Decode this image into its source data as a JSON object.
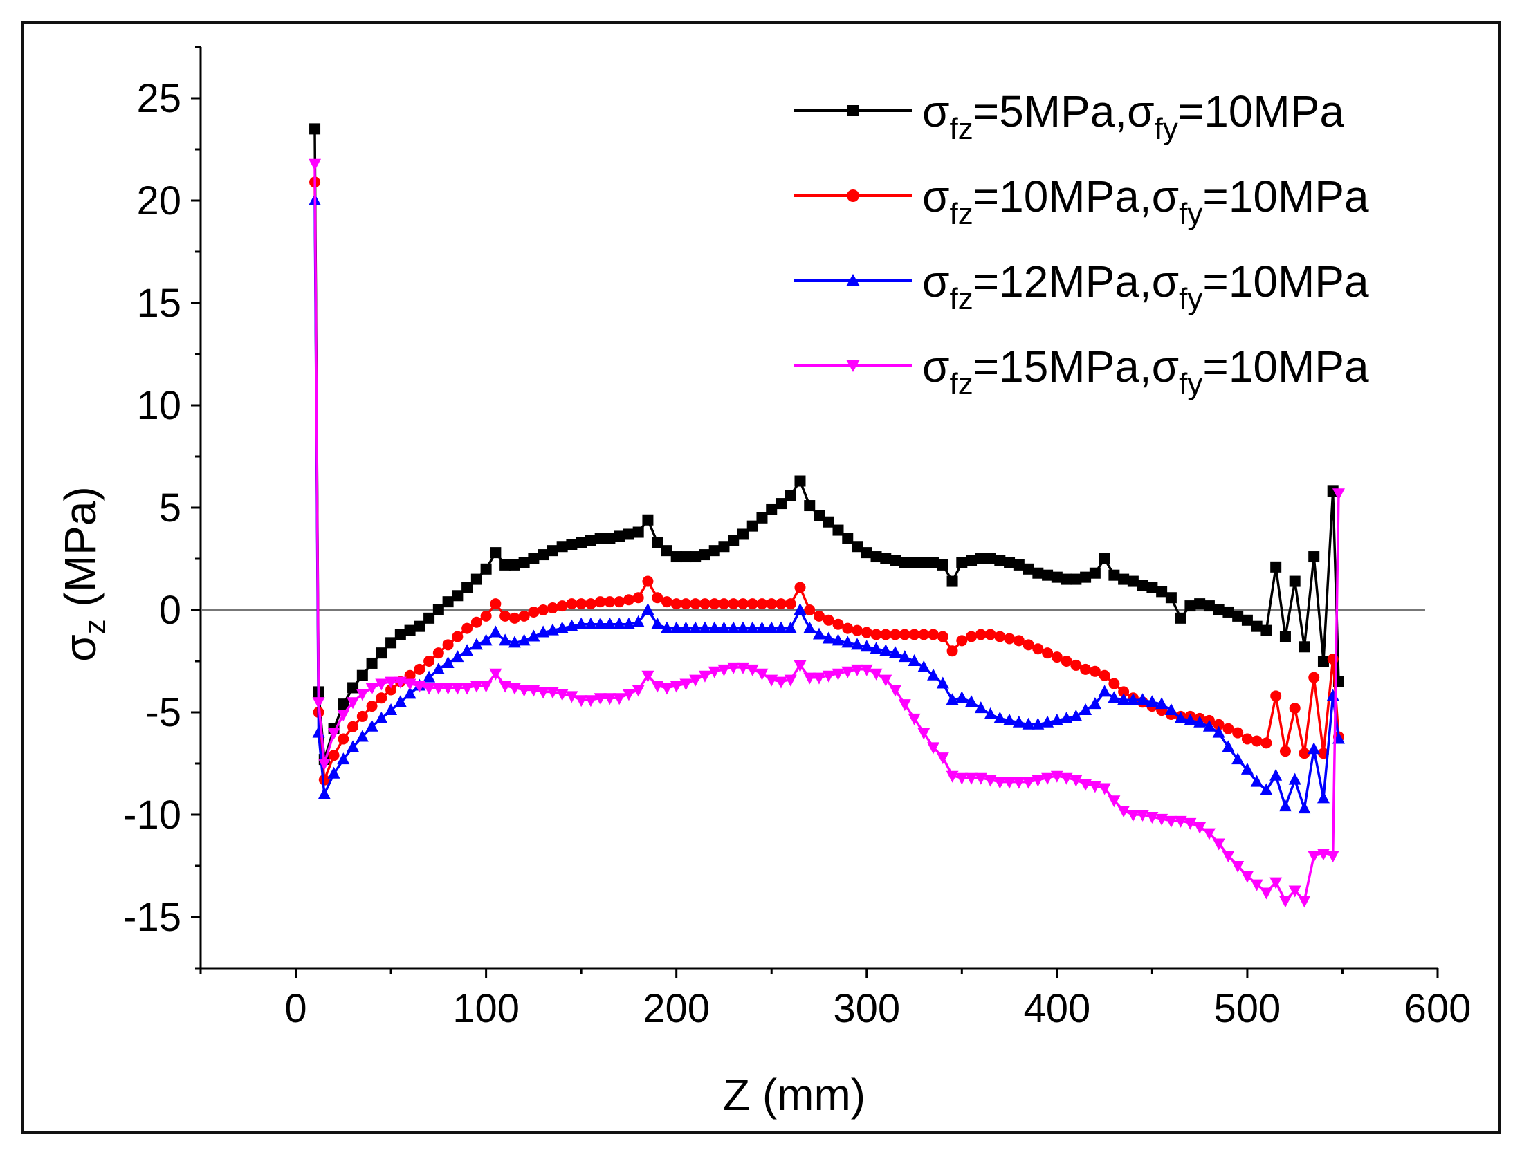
{
  "chart_data": {
    "type": "line",
    "title": "",
    "xlabel": "Z (mm)",
    "ylabel_main": "σ",
    "ylabel_sub": "z",
    "ylabel_unit": " (MPa)",
    "xlim": [
      -50,
      600
    ],
    "ylim": [
      -17.5,
      27.5
    ],
    "xticks": [
      0,
      100,
      200,
      300,
      400,
      500,
      600
    ],
    "yticks": [
      25,
      20,
      15,
      10,
      5,
      0,
      -5,
      -10,
      -15
    ],
    "xtick_labels": [
      "0",
      "100",
      "200",
      "300",
      "400",
      "500",
      "600"
    ],
    "ytick_labels": [
      "25",
      "20",
      "15",
      "10",
      "5",
      "0",
      "-5",
      "-10",
      "-15"
    ],
    "reference_line_y": 0,
    "legend_position": "top-right",
    "series": [
      {
        "name": "σfz=5MPa,σfy=10MPa",
        "legend": {
          "s1": "σ",
          "sub1": "fz",
          "mid": "=5MPa,",
          "s2": "σ",
          "sub2": "fy",
          "end": "=10MPa"
        },
        "color": "#000000",
        "marker": "square",
        "x": [
          10,
          12,
          15,
          20,
          25,
          30,
          35,
          40,
          45,
          50,
          55,
          60,
          65,
          70,
          75,
          80,
          85,
          90,
          95,
          100,
          105,
          110,
          115,
          120,
          125,
          130,
          135,
          140,
          145,
          150,
          155,
          160,
          165,
          170,
          175,
          180,
          185,
          190,
          195,
          200,
          205,
          210,
          215,
          220,
          225,
          230,
          235,
          240,
          245,
          250,
          255,
          260,
          265,
          270,
          275,
          280,
          285,
          290,
          295,
          300,
          305,
          310,
          315,
          320,
          325,
          330,
          335,
          340,
          345,
          350,
          355,
          360,
          365,
          370,
          375,
          380,
          385,
          390,
          395,
          400,
          405,
          410,
          415,
          420,
          425,
          430,
          435,
          440,
          445,
          450,
          455,
          460,
          465,
          470,
          475,
          480,
          485,
          490,
          495,
          500,
          505,
          510,
          515,
          520,
          525,
          530,
          535,
          540,
          545,
          548
        ],
        "values": [
          23.5,
          -4.0,
          -7.3,
          -5.8,
          -4.6,
          -3.8,
          -3.2,
          -2.6,
          -2.1,
          -1.6,
          -1.2,
          -1.0,
          -0.8,
          -0.4,
          0.0,
          0.4,
          0.7,
          1.1,
          1.5,
          2.0,
          2.8,
          2.2,
          2.2,
          2.3,
          2.5,
          2.7,
          2.9,
          3.1,
          3.2,
          3.3,
          3.4,
          3.5,
          3.5,
          3.6,
          3.7,
          3.8,
          4.4,
          3.3,
          2.9,
          2.6,
          2.6,
          2.6,
          2.7,
          2.9,
          3.1,
          3.4,
          3.7,
          4.1,
          4.5,
          4.9,
          5.2,
          5.6,
          6.3,
          5.1,
          4.6,
          4.3,
          3.9,
          3.5,
          3.1,
          2.8,
          2.6,
          2.5,
          2.4,
          2.3,
          2.3,
          2.3,
          2.3,
          2.2,
          1.4,
          2.3,
          2.4,
          2.5,
          2.5,
          2.4,
          2.3,
          2.2,
          2.0,
          1.8,
          1.7,
          1.6,
          1.5,
          1.5,
          1.6,
          1.8,
          2.5,
          1.7,
          1.5,
          1.4,
          1.2,
          1.1,
          0.9,
          0.6,
          -0.4,
          0.2,
          0.3,
          0.2,
          0.0,
          -0.1,
          -0.3,
          -0.5,
          -0.8,
          -1.0,
          2.1,
          -1.3,
          1.4,
          -1.8,
          2.6,
          -2.5,
          5.8,
          -3.5
        ]
      },
      {
        "name": "σfz=10MPa,σfy=10MPa",
        "legend": {
          "s1": "σ",
          "sub1": "fz",
          "mid": "=10MPa,",
          "s2": "σ",
          "sub2": "fy",
          "end": "=10MPa"
        },
        "color": "#ff0000",
        "marker": "circle",
        "x": [
          10,
          12,
          15,
          20,
          25,
          30,
          35,
          40,
          45,
          50,
          55,
          60,
          65,
          70,
          75,
          80,
          85,
          90,
          95,
          100,
          105,
          110,
          115,
          120,
          125,
          130,
          135,
          140,
          145,
          150,
          155,
          160,
          165,
          170,
          175,
          180,
          185,
          190,
          195,
          200,
          205,
          210,
          215,
          220,
          225,
          230,
          235,
          240,
          245,
          250,
          255,
          260,
          265,
          270,
          275,
          280,
          285,
          290,
          295,
          300,
          305,
          310,
          315,
          320,
          325,
          330,
          335,
          340,
          345,
          350,
          355,
          360,
          365,
          370,
          375,
          380,
          385,
          390,
          395,
          400,
          405,
          410,
          415,
          420,
          425,
          430,
          435,
          440,
          445,
          450,
          455,
          460,
          465,
          470,
          475,
          480,
          485,
          490,
          495,
          500,
          505,
          510,
          515,
          520,
          525,
          530,
          535,
          540,
          545,
          548
        ],
        "values": [
          20.9,
          -5.0,
          -8.3,
          -7.1,
          -6.3,
          -5.7,
          -5.2,
          -4.7,
          -4.3,
          -3.9,
          -3.5,
          -3.2,
          -2.9,
          -2.5,
          -2.1,
          -1.7,
          -1.3,
          -0.9,
          -0.6,
          -0.3,
          0.3,
          -0.3,
          -0.4,
          -0.3,
          -0.1,
          0.0,
          0.1,
          0.2,
          0.3,
          0.3,
          0.3,
          0.4,
          0.4,
          0.4,
          0.5,
          0.6,
          1.4,
          0.6,
          0.4,
          0.3,
          0.3,
          0.3,
          0.3,
          0.3,
          0.3,
          0.3,
          0.3,
          0.3,
          0.3,
          0.3,
          0.3,
          0.3,
          1.1,
          0.0,
          -0.3,
          -0.5,
          -0.7,
          -0.9,
          -1.0,
          -1.1,
          -1.2,
          -1.2,
          -1.2,
          -1.2,
          -1.2,
          -1.2,
          -1.2,
          -1.3,
          -2.0,
          -1.5,
          -1.3,
          -1.2,
          -1.2,
          -1.3,
          -1.4,
          -1.5,
          -1.7,
          -1.9,
          -2.1,
          -2.3,
          -2.5,
          -2.7,
          -2.9,
          -3.0,
          -3.2,
          -3.6,
          -4.0,
          -4.3,
          -4.5,
          -4.7,
          -4.9,
          -5.1,
          -5.2,
          -5.2,
          -5.3,
          -5.4,
          -5.6,
          -5.8,
          -6.0,
          -6.3,
          -6.4,
          -6.5,
          -4.2,
          -6.9,
          -4.8,
          -7.0,
          -3.3,
          -7.0,
          -2.4,
          -6.2
        ]
      },
      {
        "name": "σfz=12MPa,σfy=10MPa",
        "legend": {
          "s1": "σ",
          "sub1": "fz",
          "mid": "=12MPa,",
          "s2": "σ",
          "sub2": "fy",
          "end": "=10MPa"
        },
        "color": "#0000ff",
        "marker": "triangle-up",
        "x": [
          10,
          12,
          15,
          20,
          25,
          30,
          35,
          40,
          45,
          50,
          55,
          60,
          65,
          70,
          75,
          80,
          85,
          90,
          95,
          100,
          105,
          110,
          115,
          120,
          125,
          130,
          135,
          140,
          145,
          150,
          155,
          160,
          165,
          170,
          175,
          180,
          185,
          190,
          195,
          200,
          205,
          210,
          215,
          220,
          225,
          230,
          235,
          240,
          245,
          250,
          255,
          260,
          265,
          270,
          275,
          280,
          285,
          290,
          295,
          300,
          305,
          310,
          315,
          320,
          325,
          330,
          335,
          340,
          345,
          350,
          355,
          360,
          365,
          370,
          375,
          380,
          385,
          390,
          395,
          400,
          405,
          410,
          415,
          420,
          425,
          430,
          435,
          440,
          445,
          450,
          455,
          460,
          465,
          470,
          475,
          480,
          485,
          490,
          495,
          500,
          505,
          510,
          515,
          520,
          525,
          530,
          535,
          540,
          545,
          548
        ],
        "values": [
          20.0,
          -6.0,
          -9.0,
          -8.0,
          -7.3,
          -6.7,
          -6.2,
          -5.7,
          -5.3,
          -4.9,
          -4.5,
          -4.1,
          -3.7,
          -3.3,
          -2.9,
          -2.6,
          -2.3,
          -2.0,
          -1.7,
          -1.5,
          -1.1,
          -1.5,
          -1.6,
          -1.5,
          -1.3,
          -1.1,
          -1.0,
          -0.9,
          -0.8,
          -0.7,
          -0.7,
          -0.7,
          -0.7,
          -0.7,
          -0.7,
          -0.6,
          0.0,
          -0.7,
          -0.9,
          -0.9,
          -0.9,
          -0.9,
          -0.9,
          -0.9,
          -0.9,
          -0.9,
          -0.9,
          -0.9,
          -0.9,
          -0.9,
          -0.9,
          -0.9,
          0.0,
          -0.9,
          -1.2,
          -1.4,
          -1.5,
          -1.6,
          -1.7,
          -1.8,
          -1.9,
          -2.0,
          -2.1,
          -2.3,
          -2.5,
          -2.8,
          -3.2,
          -3.6,
          -4.4,
          -4.3,
          -4.5,
          -4.8,
          -5.1,
          -5.3,
          -5.4,
          -5.5,
          -5.6,
          -5.6,
          -5.5,
          -5.4,
          -5.3,
          -5.2,
          -4.9,
          -4.6,
          -4.0,
          -4.3,
          -4.4,
          -4.4,
          -4.4,
          -4.5,
          -4.6,
          -4.9,
          -5.3,
          -5.4,
          -5.5,
          -5.7,
          -6.0,
          -6.7,
          -7.3,
          -7.8,
          -8.4,
          -8.8,
          -8.1,
          -9.6,
          -8.3,
          -9.7,
          -6.8,
          -9.2,
          -4.2,
          -6.3
        ]
      },
      {
        "name": "σfz=15MPa,σfy=10MPa",
        "legend": {
          "s1": "σ",
          "sub1": "fz",
          "mid": "=15MPa,",
          "s2": "σ",
          "sub2": "fy",
          "end": "=10MPa"
        },
        "color": "#ff00ff",
        "marker": "triangle-down",
        "x": [
          10,
          12,
          15,
          20,
          25,
          30,
          35,
          40,
          45,
          50,
          55,
          60,
          65,
          70,
          75,
          80,
          85,
          90,
          95,
          100,
          105,
          110,
          115,
          120,
          125,
          130,
          135,
          140,
          145,
          150,
          155,
          160,
          165,
          170,
          175,
          180,
          185,
          190,
          195,
          200,
          205,
          210,
          215,
          220,
          225,
          230,
          235,
          240,
          245,
          250,
          255,
          260,
          265,
          270,
          275,
          280,
          285,
          290,
          295,
          300,
          305,
          310,
          315,
          320,
          325,
          330,
          335,
          340,
          345,
          350,
          355,
          360,
          365,
          370,
          375,
          380,
          385,
          390,
          395,
          400,
          405,
          410,
          415,
          420,
          425,
          430,
          435,
          440,
          445,
          450,
          455,
          460,
          465,
          470,
          475,
          480,
          485,
          490,
          495,
          500,
          505,
          510,
          515,
          520,
          525,
          530,
          535,
          540,
          545,
          548
        ],
        "values": [
          21.8,
          -4.5,
          -7.5,
          -6.0,
          -5.1,
          -4.5,
          -4.1,
          -3.8,
          -3.6,
          -3.5,
          -3.5,
          -3.6,
          -3.7,
          -3.8,
          -3.8,
          -3.8,
          -3.8,
          -3.8,
          -3.7,
          -3.7,
          -3.1,
          -3.7,
          -3.8,
          -3.9,
          -3.9,
          -4.0,
          -4.0,
          -4.1,
          -4.2,
          -4.4,
          -4.4,
          -4.3,
          -4.3,
          -4.3,
          -4.1,
          -3.9,
          -3.2,
          -3.7,
          -3.8,
          -3.7,
          -3.6,
          -3.4,
          -3.2,
          -3.0,
          -2.9,
          -2.8,
          -2.8,
          -2.9,
          -3.1,
          -3.4,
          -3.5,
          -3.4,
          -2.7,
          -3.3,
          -3.3,
          -3.2,
          -3.1,
          -3.0,
          -2.9,
          -2.9,
          -3.1,
          -3.4,
          -3.9,
          -4.6,
          -5.3,
          -6.0,
          -6.7,
          -7.2,
          -8.1,
          -8.2,
          -8.2,
          -8.2,
          -8.3,
          -8.4,
          -8.4,
          -8.4,
          -8.4,
          -8.3,
          -8.2,
          -8.1,
          -8.2,
          -8.3,
          -8.5,
          -8.6,
          -8.7,
          -9.3,
          -9.8,
          -10.0,
          -10.0,
          -10.1,
          -10.2,
          -10.3,
          -10.3,
          -10.4,
          -10.6,
          -10.9,
          -11.4,
          -12.0,
          -12.5,
          -13.0,
          -13.4,
          -13.8,
          -13.3,
          -14.2,
          -13.7,
          -14.2,
          -12.0,
          -11.9,
          -12.0,
          5.7
        ]
      }
    ]
  }
}
